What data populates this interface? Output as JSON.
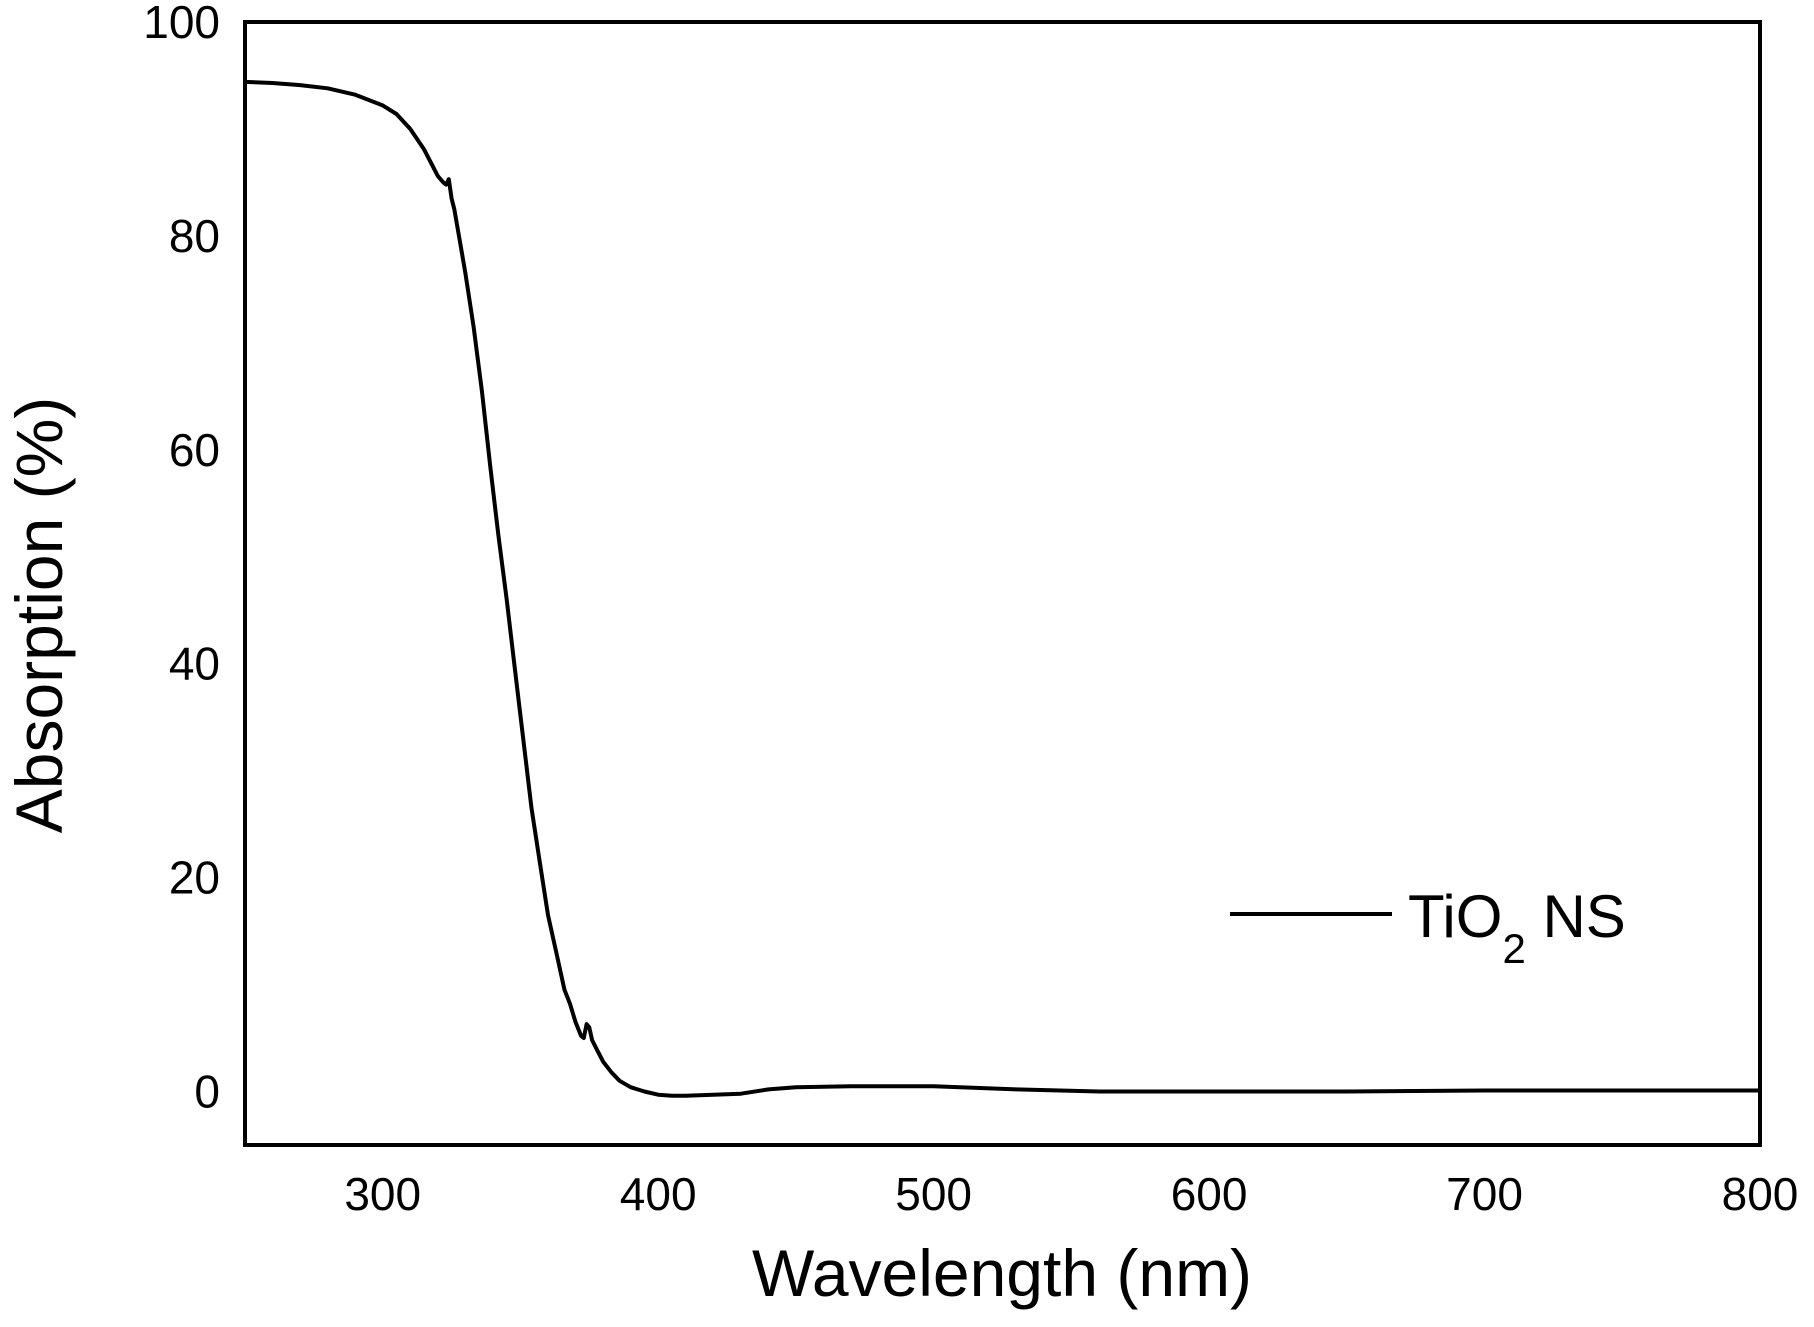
{
  "chart_data": {
    "type": "line",
    "title": "",
    "xlabel": "Wavelength (nm)",
    "ylabel": "Absorption (%)",
    "xlim": [
      250,
      800
    ],
    "ylim": [
      -5,
      100
    ],
    "x_ticks": [
      300,
      400,
      500,
      600,
      700,
      800
    ],
    "y_ticks": [
      0,
      20,
      40,
      60,
      80,
      100
    ],
    "x_tick_labels": [
      "300",
      "400",
      "500",
      "600",
      "700",
      "800"
    ],
    "y_tick_labels": [
      "0",
      "20",
      "40",
      "60",
      "80",
      "100"
    ],
    "grid": false,
    "legend_position": "right",
    "series": [
      {
        "name_main": "TiO",
        "name_sub": "2",
        "name_tail": " NS",
        "color": "#000000",
        "x": [
          250,
          260,
          270,
          280,
          290,
          300,
          305,
          310,
          315,
          318,
          320,
          322,
          323,
          324,
          325,
          326,
          328,
          330,
          333,
          336,
          339,
          342,
          345,
          348,
          351,
          354,
          357,
          360,
          363,
          366,
          368,
          370,
          372,
          373,
          374,
          375,
          376,
          378,
          380,
          383,
          386,
          390,
          395,
          400,
          405,
          410,
          420,
          430,
          440,
          450,
          470,
          500,
          530,
          560,
          600,
          650,
          700,
          750,
          800
        ],
        "y": [
          94.4,
          94.3,
          94.1,
          93.8,
          93.2,
          92.2,
          91.4,
          90.0,
          88.1,
          86.6,
          85.6,
          85.0,
          84.8,
          85.3,
          83.5,
          82.5,
          79.5,
          76.5,
          71.5,
          65.5,
          58.5,
          52.0,
          46.0,
          39.5,
          33.0,
          26.5,
          21.5,
          16.5,
          13.0,
          9.5,
          8.2,
          6.5,
          5.2,
          5.0,
          6.3,
          6.0,
          4.8,
          3.8,
          2.8,
          1.8,
          1.0,
          0.4,
          0.0,
          -0.3,
          -0.4,
          -0.4,
          -0.3,
          -0.2,
          0.2,
          0.4,
          0.5,
          0.5,
          0.2,
          0.0,
          0.0,
          0.0,
          0.1,
          0.1,
          0.1
        ]
      }
    ]
  }
}
